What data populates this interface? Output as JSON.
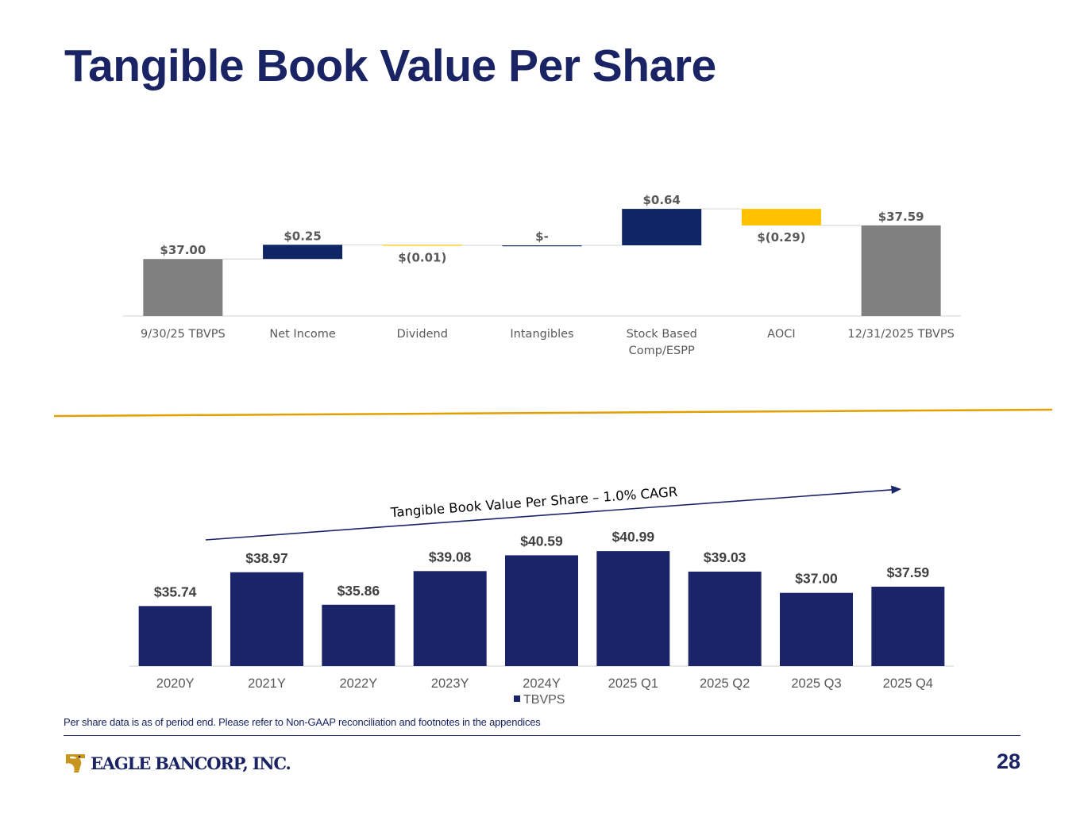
{
  "title": "Tangible Book Value Per Share",
  "chart_data": [
    {
      "type": "waterfall",
      "title": "",
      "categories": [
        "9/30/25 TBVPS",
        "Net Income",
        "Dividend",
        "Intangibles",
        "Stock Based Comp/ESPP",
        "AOCI",
        "12/31/2025 TBVPS"
      ],
      "category_lines": [
        [
          "9/30/25 TBVPS"
        ],
        [
          "Net Income"
        ],
        [
          "Dividend"
        ],
        [
          "Intangibles"
        ],
        [
          "Stock Based",
          "Comp/ESPP"
        ],
        [
          "AOCI"
        ],
        [
          "12/31/2025 TBVPS"
        ]
      ],
      "values": [
        37.0,
        0.25,
        -0.01,
        0.0,
        0.64,
        -0.29,
        37.59
      ],
      "kinds": [
        "total",
        "delta",
        "delta",
        "delta",
        "delta",
        "delta",
        "total"
      ],
      "labels": [
        "$37.00",
        "$0.25",
        "$(0.01)",
        "$-",
        "$0.64",
        "$(0.29)",
        "$37.59"
      ],
      "colors": {
        "total": "#808080",
        "increase": "#0e2566",
        "decrease": "#ffc000"
      },
      "xlabel": "",
      "ylabel": ""
    },
    {
      "type": "bar",
      "title": "Tangible Book Value Per Share – 1.0% CAGR",
      "categories": [
        "2020Y",
        "2021Y",
        "2022Y",
        "2023Y",
        "2024Y",
        "2025 Q1",
        "2025 Q2",
        "2025 Q3",
        "2025 Q4"
      ],
      "series": [
        {
          "name": "TBVPS",
          "values": [
            35.74,
            38.97,
            35.86,
            39.08,
            40.59,
            40.99,
            39.03,
            37.0,
            37.59
          ],
          "color": "#1b2369"
        }
      ],
      "labels": [
        "$35.74",
        "$38.97",
        "$35.86",
        "$39.08",
        "$40.59",
        "$40.99",
        "$39.03",
        "$37.00",
        "$37.59"
      ],
      "legend": "bottom",
      "xlabel": "",
      "ylabel": ""
    }
  ],
  "footnote": "Per share data is as of period end. Please refer to Non-GAAP reconciliation and footnotes in the appendices",
  "logo_text": "EAGLE BANCORP, INC.",
  "page_number": "28",
  "colors": {
    "brand_navy": "#1a2464",
    "accent_gold": "#e2a000"
  }
}
